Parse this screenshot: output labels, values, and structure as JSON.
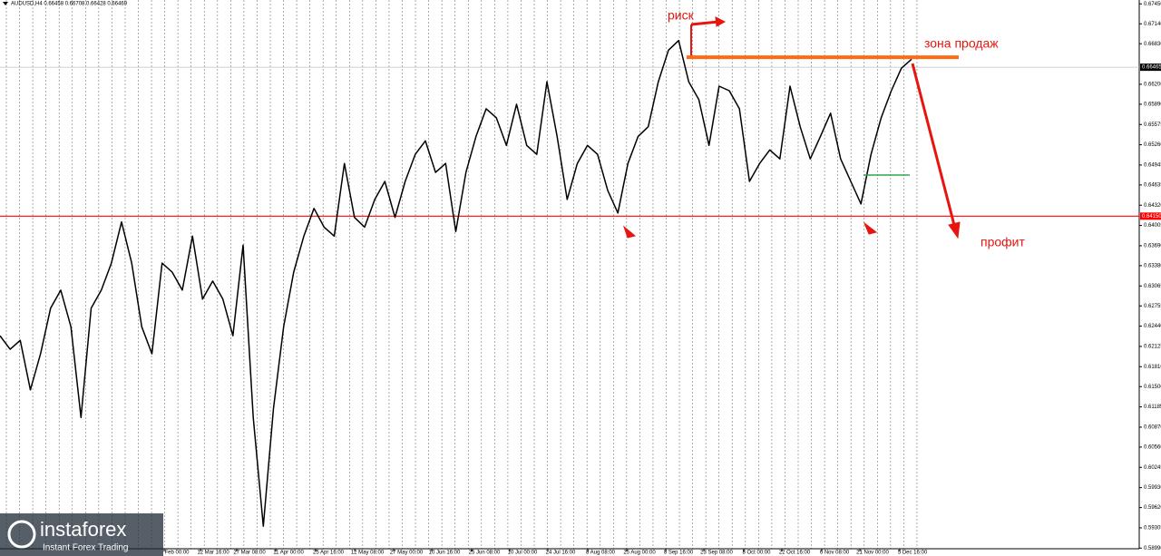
{
  "chart_data": {
    "type": "line",
    "title": "AUDUSD,H4  0.66458 0.66708 0.66428 0.66469",
    "series": [
      {
        "name": "AUDUSD",
        "color": "#000000",
        "values": [
          0.6229,
          0.6208,
          0.6222,
          0.6145,
          0.6201,
          0.6272,
          0.63,
          0.6243,
          0.6102,
          0.6272,
          0.63,
          0.6342,
          0.6406,
          0.6342,
          0.6243,
          0.6201,
          0.6342,
          0.6328,
          0.63,
          0.6384,
          0.6286,
          0.6314,
          0.6286,
          0.6229,
          0.637,
          0.6102,
          0.5933,
          0.6116,
          0.6243,
          0.6328,
          0.6384,
          0.6427,
          0.6398,
          0.6384,
          0.6497,
          0.6413,
          0.6398,
          0.6441,
          0.6469,
          0.6413,
          0.6469,
          0.6511,
          0.6532,
          0.6483,
          0.6497,
          0.6391,
          0.6483,
          0.6539,
          0.6582,
          0.6568,
          0.6525,
          0.6589,
          0.6525,
          0.6511,
          0.6624,
          0.6539,
          0.6441,
          0.6497,
          0.6525,
          0.6511,
          0.6455,
          0.642,
          0.6497,
          0.6539,
          0.6554,
          0.6624,
          0.6673,
          0.6688,
          0.6624,
          0.6596,
          0.6525,
          0.6617,
          0.661,
          0.6582,
          0.6469,
          0.6497,
          0.6518,
          0.6504,
          0.6617,
          0.6554,
          0.6504,
          0.6539,
          0.6575,
          0.6504,
          0.6469,
          0.6434,
          0.6511,
          0.6568,
          0.661,
          0.6645,
          0.6659
        ]
      }
    ],
    "ylim": [
      0.5898,
      0.6751
    ],
    "yticks": [
      {
        "value": 0.6745,
        "label": "0.67450"
      },
      {
        "value": 0.6714,
        "label": "0.67140"
      },
      {
        "value": 0.6683,
        "label": "0.66830"
      },
      {
        "value": 0.662,
        "label": "0.66200"
      },
      {
        "value": 0.6589,
        "label": "0.65890"
      },
      {
        "value": 0.65575,
        "label": "0.65575"
      },
      {
        "value": 0.6526,
        "label": "0.65260"
      },
      {
        "value": 0.64945,
        "label": "0.64945"
      },
      {
        "value": 0.64635,
        "label": "0.64635"
      },
      {
        "value": 0.6432,
        "label": "0.64320"
      },
      {
        "value": 0.64005,
        "label": "0.64005"
      },
      {
        "value": 0.6369,
        "label": "0.63690"
      },
      {
        "value": 0.6338,
        "label": "0.63380"
      },
      {
        "value": 0.63065,
        "label": "0.63065"
      },
      {
        "value": 0.62755,
        "label": "0.62755"
      },
      {
        "value": 0.6244,
        "label": "0.62440"
      },
      {
        "value": 0.62125,
        "label": "0.62125"
      },
      {
        "value": 0.6181,
        "label": "0.61810"
      },
      {
        "value": 0.615,
        "label": "0.61500"
      },
      {
        "value": 0.61185,
        "label": "0.61185"
      },
      {
        "value": 0.6087,
        "label": "0.60870"
      },
      {
        "value": 0.6056,
        "label": "0.60560"
      },
      {
        "value": 0.60245,
        "label": "0.60245"
      },
      {
        "value": 0.5993,
        "label": "0.59930"
      },
      {
        "value": 0.5962,
        "label": "0.59620"
      },
      {
        "value": 0.59305,
        "label": "0.59305"
      },
      {
        "value": 0.5899,
        "label": "0.58990"
      }
    ],
    "xticks": [
      "Feb 00:00",
      "12 Mar 16:00",
      "27 Mar 08:00",
      "11 Apr 00:00",
      "25 Apr 16:00",
      "12 May 08:00",
      "27 May 00:00",
      "10 Jun 16:00",
      "25 Jun 08:00",
      "10 Jul 00:00",
      "24 Jul 16:00",
      "8 Aug 08:00",
      "25 Aug 00:00",
      "8 Sep 16:00",
      "23 Sep 08:00",
      "8 Oct 00:00",
      "22 Oct 16:00",
      "6 Nov 08:00",
      "21 Nov 00:00",
      "5 Dec 16:00"
    ],
    "price_lines": [
      {
        "value": 0.6415,
        "label": "0.64150",
        "color": "#ff0000"
      },
      {
        "value": 0.66465,
        "label": "0.66465",
        "color": "#c0c0c0"
      }
    ],
    "sell_zone": {
      "value": 0.6662,
      "color": "#ff6a13"
    },
    "annotations": [
      "риск",
      "зона продаж",
      "профит"
    ],
    "logo": {
      "name": "instaforex",
      "tagline": "Instant Forex Trading"
    }
  }
}
